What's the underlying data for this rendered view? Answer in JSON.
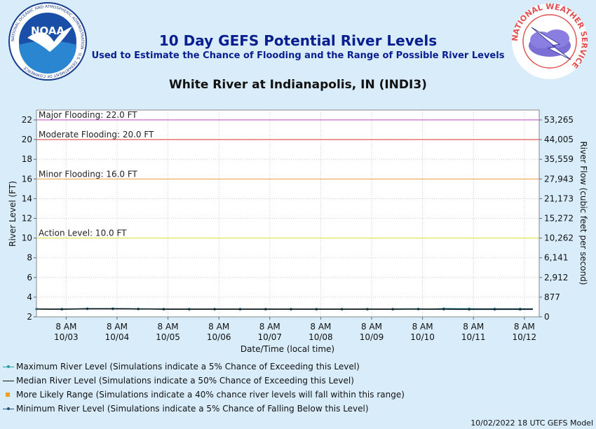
{
  "header": {
    "title": "10 Day GEFS Potential River Levels",
    "subtitle": "Used to Estimate the Chance of Flooding and the Range of Possible River Levels",
    "station": "White River at Indianapolis, IN (INDI3)"
  },
  "logos": {
    "noaa_text": "NOAA",
    "noaa_ring_text": "NATIONAL OCEANIC AND ATMOSPHERIC ADMINISTRATION · U.S. DEPARTMENT OF COMMERCE",
    "nws_ring_text": "NATIONAL WEATHER SERVICE"
  },
  "chart_data": {
    "type": "line",
    "xlabel": "Date/Time (local time)",
    "ylabel": "River Level (FT)",
    "y2label": "River Flow (cubic feet per second)",
    "ylim": [
      2,
      23
    ],
    "xlim": [
      0,
      237
    ],
    "yticks": [
      2,
      4,
      6,
      8,
      10,
      12,
      14,
      16,
      18,
      20,
      22
    ],
    "y2ticks": [
      {
        "stage": 2,
        "label": "0"
      },
      {
        "stage": 4,
        "label": "877"
      },
      {
        "stage": 6,
        "label": "2,912"
      },
      {
        "stage": 8,
        "label": "6,141"
      },
      {
        "stage": 10,
        "label": "10,262"
      },
      {
        "stage": 12,
        "label": "15,272"
      },
      {
        "stage": 14,
        "label": "21,173"
      },
      {
        "stage": 16,
        "label": "27,943"
      },
      {
        "stage": 18,
        "label": "35,559"
      },
      {
        "stage": 20,
        "label": "44,005"
      },
      {
        "stage": 22,
        "label": "53,265"
      }
    ],
    "xticks": [
      {
        "hour": 14,
        "time": "8 AM",
        "date": "10/03"
      },
      {
        "hour": 38,
        "time": "8 AM",
        "date": "10/04"
      },
      {
        "hour": 62,
        "time": "8 AM",
        "date": "10/05"
      },
      {
        "hour": 86,
        "time": "8 AM",
        "date": "10/06"
      },
      {
        "hour": 110,
        "time": "8 AM",
        "date": "10/07"
      },
      {
        "hour": 134,
        "time": "8 AM",
        "date": "10/08"
      },
      {
        "hour": 158,
        "time": "8 AM",
        "date": "10/09"
      },
      {
        "hour": 182,
        "time": "8 AM",
        "date": "10/10"
      },
      {
        "hour": 206,
        "time": "8 AM",
        "date": "10/11"
      },
      {
        "hour": 230,
        "time": "8 AM",
        "date": "10/12"
      }
    ],
    "thresholds": [
      {
        "label": "Major Flooding: 22.0 FT",
        "value": 22.0,
        "color": "#c040c0"
      },
      {
        "label": "Moderate Flooding: 20.0 FT",
        "value": 20.0,
        "color": "#e03030"
      },
      {
        "label": "Minor Flooding: 16.0 FT",
        "value": 16.0,
        "color": "#f0a040"
      },
      {
        "label": "Action Level: 10.0 FT",
        "value": 10.0,
        "color": "#e0e040"
      }
    ],
    "series": [
      {
        "name": "Maximum River Level (Simulations indicate a 5% Chance of Exceeding this Level)",
        "color": "#20a0a0",
        "x": [
          0,
          6,
          12,
          18,
          24,
          30,
          36,
          42,
          48,
          54,
          60,
          66,
          72,
          78,
          84,
          90,
          96,
          102,
          108,
          114,
          120,
          126,
          132,
          138,
          144,
          150,
          156,
          162,
          168,
          174,
          180,
          186,
          192,
          198,
          204,
          210,
          216,
          222,
          228,
          234
        ],
        "y": [
          2.82,
          2.8,
          2.8,
          2.82,
          2.85,
          2.85,
          2.85,
          2.84,
          2.83,
          2.82,
          2.8,
          2.8,
          2.8,
          2.8,
          2.8,
          2.8,
          2.8,
          2.8,
          2.8,
          2.8,
          2.8,
          2.8,
          2.8,
          2.8,
          2.8,
          2.8,
          2.8,
          2.8,
          2.8,
          2.82,
          2.82,
          2.8,
          2.85,
          2.84,
          2.83,
          2.82,
          2.82,
          2.82,
          2.82,
          2.82
        ]
      },
      {
        "name": "Median River Level (Simulations indicate a 50% Chance of Exceeding this Level)",
        "color": "#111111",
        "x": [
          0,
          6,
          12,
          18,
          24,
          30,
          36,
          42,
          48,
          54,
          60,
          66,
          72,
          78,
          84,
          90,
          96,
          102,
          108,
          114,
          120,
          126,
          132,
          138,
          144,
          150,
          156,
          162,
          168,
          174,
          180,
          186,
          192,
          198,
          204,
          210,
          216,
          222,
          228,
          234
        ],
        "y": [
          2.8,
          2.78,
          2.78,
          2.8,
          2.82,
          2.82,
          2.82,
          2.82,
          2.8,
          2.8,
          2.78,
          2.78,
          2.78,
          2.78,
          2.78,
          2.78,
          2.78,
          2.78,
          2.78,
          2.78,
          2.78,
          2.78,
          2.78,
          2.78,
          2.78,
          2.78,
          2.78,
          2.78,
          2.78,
          2.79,
          2.79,
          2.78,
          2.8,
          2.79,
          2.79,
          2.79,
          2.79,
          2.79,
          2.79,
          2.79
        ]
      },
      {
        "name": "More Likely Range (Simulations indicate a 40% chance river levels will fall within this range)",
        "color": "#f0a020",
        "x": [
          0,
          6,
          12,
          18,
          24,
          30,
          36,
          42,
          48,
          54,
          60,
          66,
          72,
          78,
          84,
          90,
          96,
          102,
          108,
          114,
          120,
          126,
          132,
          138,
          144,
          150,
          156,
          162,
          168,
          174,
          180,
          186,
          192,
          198,
          204,
          210,
          216,
          222,
          228,
          234
        ],
        "y": [
          2.8,
          2.78,
          2.78,
          2.8,
          2.82,
          2.82,
          2.82,
          2.82,
          2.8,
          2.8,
          2.78,
          2.78,
          2.78,
          2.78,
          2.78,
          2.78,
          2.78,
          2.78,
          2.78,
          2.78,
          2.78,
          2.78,
          2.78,
          2.78,
          2.78,
          2.78,
          2.78,
          2.78,
          2.78,
          2.79,
          2.79,
          2.78,
          2.8,
          2.79,
          2.79,
          2.79,
          2.79,
          2.79,
          2.79,
          2.79
        ]
      },
      {
        "name": "Minimum River Level (Simulations indicate a 5% Chance of Falling Below this Level)",
        "color": "#205080",
        "x": [
          0,
          6,
          12,
          18,
          24,
          30,
          36,
          42,
          48,
          54,
          60,
          66,
          72,
          78,
          84,
          90,
          96,
          102,
          108,
          114,
          120,
          126,
          132,
          138,
          144,
          150,
          156,
          162,
          168,
          174,
          180,
          186,
          192,
          198,
          204,
          210,
          216,
          222,
          228,
          234
        ],
        "y": [
          2.78,
          2.76,
          2.76,
          2.78,
          2.8,
          2.8,
          2.8,
          2.8,
          2.78,
          2.78,
          2.76,
          2.76,
          2.76,
          2.76,
          2.76,
          2.76,
          2.76,
          2.76,
          2.76,
          2.76,
          2.76,
          2.76,
          2.76,
          2.76,
          2.76,
          2.76,
          2.76,
          2.76,
          2.76,
          2.77,
          2.77,
          2.76,
          2.76,
          2.75,
          2.75,
          2.75,
          2.75,
          2.75,
          2.75,
          2.75
        ]
      }
    ]
  },
  "footer": {
    "model_run": "10/02/2022 18 UTC GEFS Model"
  }
}
